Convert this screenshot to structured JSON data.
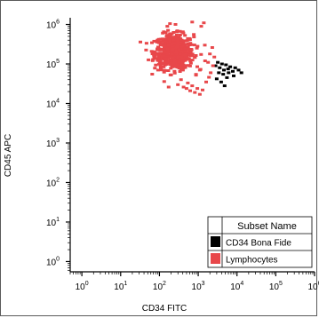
{
  "chart_data": {
    "type": "scatter",
    "title": "",
    "xlabel": "CD34 FITC",
    "ylabel": "CD45 APC",
    "xscale": "log",
    "yscale": "log",
    "xlim": [
      0.5,
      1000000
    ],
    "ylim": [
      0.55,
      1200000
    ],
    "x_tick_labels": [
      "10^0",
      "10^1",
      "10^2",
      "10^3",
      "10^4",
      "10^5",
      "10^6"
    ],
    "y_tick_labels": [
      "10^0",
      "10^1",
      "10^2",
      "10^3",
      "10^4",
      "10^5",
      "10^6"
    ],
    "grid": false,
    "legend": {
      "header": "Subset Name",
      "placement": "bottom-right",
      "entries": [
        {
          "label": "CD34 Bona Fide",
          "color": "#000000"
        },
        {
          "label": "Lymphocytes",
          "color": "#e8474a"
        }
      ]
    },
    "series": [
      {
        "name": "CD34 Bona Fide",
        "color": "#000000",
        "points": [
          [
            2800,
            90000
          ],
          [
            3200,
            110000
          ],
          [
            3600,
            80000
          ],
          [
            4100,
            100000
          ],
          [
            4600,
            70000
          ],
          [
            5200,
            95000
          ],
          [
            5900,
            75000
          ],
          [
            6700,
            85000
          ],
          [
            7800,
            65000
          ],
          [
            9000,
            80000
          ],
          [
            3400,
            60000
          ],
          [
            4400,
            55000
          ],
          [
            6100,
            60000
          ],
          [
            11000,
            70000
          ],
          [
            13000,
            60000
          ],
          [
            3900,
            35000
          ],
          [
            4800,
            28000
          ],
          [
            3000,
            42000
          ],
          [
            8200,
            50000
          ],
          [
            5500,
            45000
          ]
        ]
      },
      {
        "name": "Lymphocytes",
        "color": "#e8474a",
        "center": [
          240,
          200000
        ],
        "spread_log10": [
          0.25,
          0.22
        ],
        "core_count": 650,
        "tail_points": [
          [
            300,
            30000
          ],
          [
            420,
            26000
          ],
          [
            500,
            24000
          ],
          [
            620,
            21000
          ],
          [
            820,
            19000
          ],
          [
            1100,
            17000
          ],
          [
            360,
            40000
          ],
          [
            540,
            33000
          ],
          [
            700,
            28000
          ],
          [
            950,
            24000
          ],
          [
            1300,
            22000
          ],
          [
            1600,
            35000
          ],
          [
            1900,
            46000
          ],
          [
            2100,
            60000
          ],
          [
            2400,
            90000
          ],
          [
            1500,
            120000
          ],
          [
            1800,
            110000
          ],
          [
            1200,
            900000
          ],
          [
            1400,
            1100000
          ],
          [
            700,
            1150000
          ],
          [
            130,
            650000
          ],
          [
            90,
            400000
          ],
          [
            110,
            300000
          ],
          [
            160,
            900000
          ],
          [
            260,
            1000000
          ],
          [
            2000,
            180000
          ],
          [
            2600,
            150000
          ],
          [
            2300,
            260000
          ],
          [
            1100,
            70000
          ],
          [
            880,
            52000
          ]
        ]
      }
    ]
  }
}
